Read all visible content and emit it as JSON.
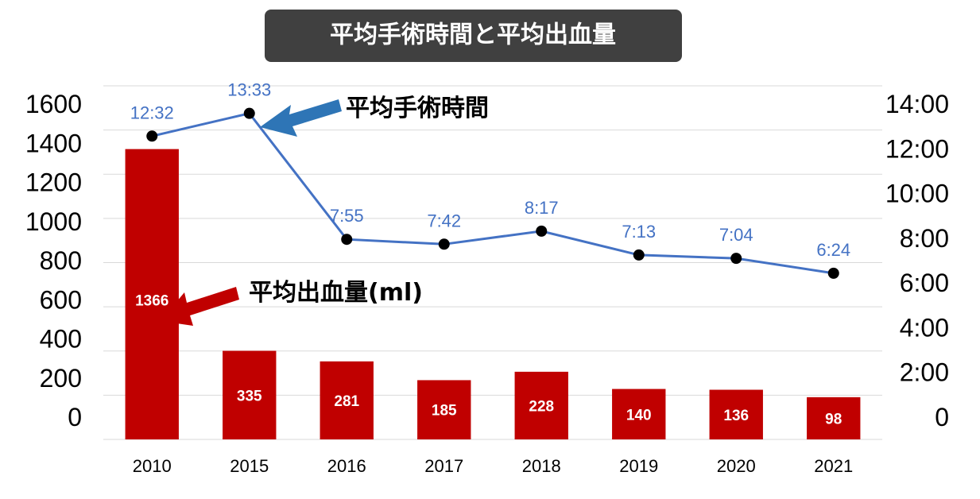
{
  "chart_data": {
    "type": "bar",
    "title": "平均手術時間と平均出血量",
    "categories": [
      "2010",
      "2015",
      "2016",
      "2017",
      "2018",
      "2019",
      "2020",
      "2021"
    ],
    "series": [
      {
        "name": "平均出血量(ml)",
        "type": "bar",
        "axis": "left",
        "color": "#c00000",
        "values": [
          1366,
          335,
          281,
          185,
          228,
          140,
          136,
          98
        ]
      },
      {
        "name": "平均手術時間",
        "type": "line",
        "axis": "right",
        "color": "#4472c4",
        "values": [
          "12:32",
          "13:33",
          "7:55",
          "7:42",
          "8:17",
          "7:13",
          "7:04",
          "6:24"
        ]
      }
    ],
    "y_left": {
      "ylim": [
        0,
        1600
      ],
      "ticks": [
        "0",
        "200",
        "400",
        "600",
        "800",
        "1000",
        "1200",
        "1400",
        "1600"
      ]
    },
    "y_right": {
      "ylim": [
        "0:00",
        "14:00"
      ],
      "ticks": [
        "0",
        "2:00",
        "4:00",
        "6:00",
        "8:00",
        "10:00",
        "12:00",
        "14:00"
      ]
    },
    "grid": true,
    "annotations": [
      {
        "text": "平均手術時間",
        "arrow_color": "#2e75b6",
        "points_to": "平均手術時間"
      },
      {
        "text": "平均出血量(ml)",
        "arrow_color": "#c00000",
        "points_to": "平均出血量(ml)"
      }
    ]
  }
}
